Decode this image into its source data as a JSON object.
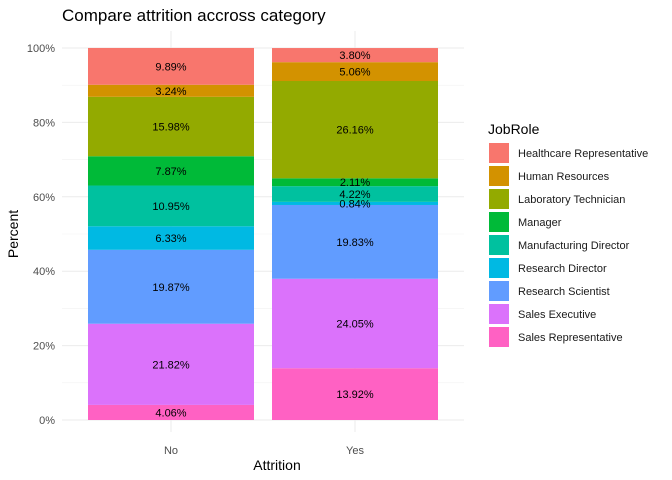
{
  "chart_data": {
    "type": "bar",
    "stacked": true,
    "title": "Compare attrition accross category",
    "xlabel": "Attrition",
    "ylabel": "Percent",
    "categories": [
      "No",
      "Yes"
    ],
    "ylim": [
      0,
      100
    ],
    "y_ticks": [
      "0%",
      "20%",
      "40%",
      "60%",
      "80%",
      "100%"
    ],
    "grid": true,
    "legend": {
      "title": "JobRole",
      "placement": "right"
    },
    "series": [
      {
        "name": "Healthcare Representative",
        "color": "#F8766D",
        "values": [
          9.89,
          3.8
        ],
        "labels": [
          "9.89%",
          "3.80%"
        ]
      },
      {
        "name": "Human Resources",
        "color": "#D39200",
        "values": [
          3.24,
          5.06
        ],
        "labels": [
          "3.24%",
          "5.06%"
        ]
      },
      {
        "name": "Laboratory Technician",
        "color": "#93AA00",
        "values": [
          15.98,
          26.16
        ],
        "labels": [
          "15.98%",
          "26.16%"
        ]
      },
      {
        "name": "Manager",
        "color": "#00BA38",
        "values": [
          7.87,
          2.11
        ],
        "labels": [
          "7.87%",
          "2.11%"
        ]
      },
      {
        "name": "Manufacturing Director",
        "color": "#00C19F",
        "values": [
          10.95,
          4.22
        ],
        "labels": [
          "10.95%",
          "4.22%"
        ]
      },
      {
        "name": "Research Director",
        "color": "#00B9E3",
        "values": [
          6.33,
          0.84
        ],
        "labels": [
          "6.33%",
          "0.84%"
        ]
      },
      {
        "name": "Research Scientist",
        "color": "#619CFF",
        "values": [
          19.87,
          19.83
        ],
        "labels": [
          "19.87%",
          "19.83%"
        ]
      },
      {
        "name": "Sales Executive",
        "color": "#DB72FB",
        "values": [
          21.82,
          24.05
        ],
        "labels": [
          "21.82%",
          "24.05%"
        ]
      },
      {
        "name": "Sales Representative",
        "color": "#FF61C3",
        "values": [
          4.06,
          13.92
        ],
        "labels": [
          "4.06%",
          "13.92%"
        ]
      }
    ]
  }
}
